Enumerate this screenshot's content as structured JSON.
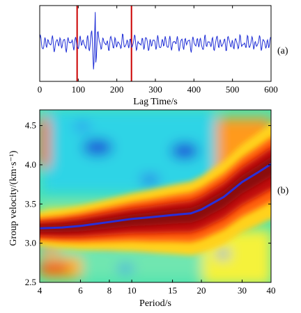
{
  "chart_data": [
    {
      "type": "line",
      "panel_label": "(a)",
      "xlabel": "Lag Time/s",
      "ylabel": "",
      "xlim": [
        0,
        600
      ],
      "xticks": [
        0,
        100,
        200,
        300,
        400,
        500,
        600
      ],
      "grid": false,
      "markers_x": [
        97,
        238
      ],
      "marker_color": "#cc0000",
      "series": [
        {
          "color": "#1f2ed6",
          "pulse": {
            "x": 145,
            "peak": 1.0,
            "trough": -0.62
          },
          "background_amplitude": 0.25
        }
      ]
    },
    {
      "type": "heatmap",
      "panel_label": "(b)",
      "xlabel": "Period/s",
      "ylabel": "Group velocity/(km·s⁻¹)",
      "xscale": "log",
      "xlim": [
        4,
        40
      ],
      "ylim": [
        2.5,
        4.7
      ],
      "xticks": [
        4,
        6,
        8,
        10,
        15,
        20,
        30,
        40
      ],
      "yticks": [
        2.5,
        3.0,
        3.5,
        4.0,
        4.5
      ],
      "colormap": "jet",
      "dispersion_curve": {
        "color": "#2a2fd8",
        "x": [
          4,
          5,
          6,
          8,
          10,
          12,
          15,
          18,
          20,
          25,
          30,
          35,
          40
        ],
        "y": [
          3.19,
          3.2,
          3.22,
          3.27,
          3.31,
          3.33,
          3.36,
          3.38,
          3.43,
          3.59,
          3.78,
          3.9,
          4.01
        ]
      }
    }
  ]
}
